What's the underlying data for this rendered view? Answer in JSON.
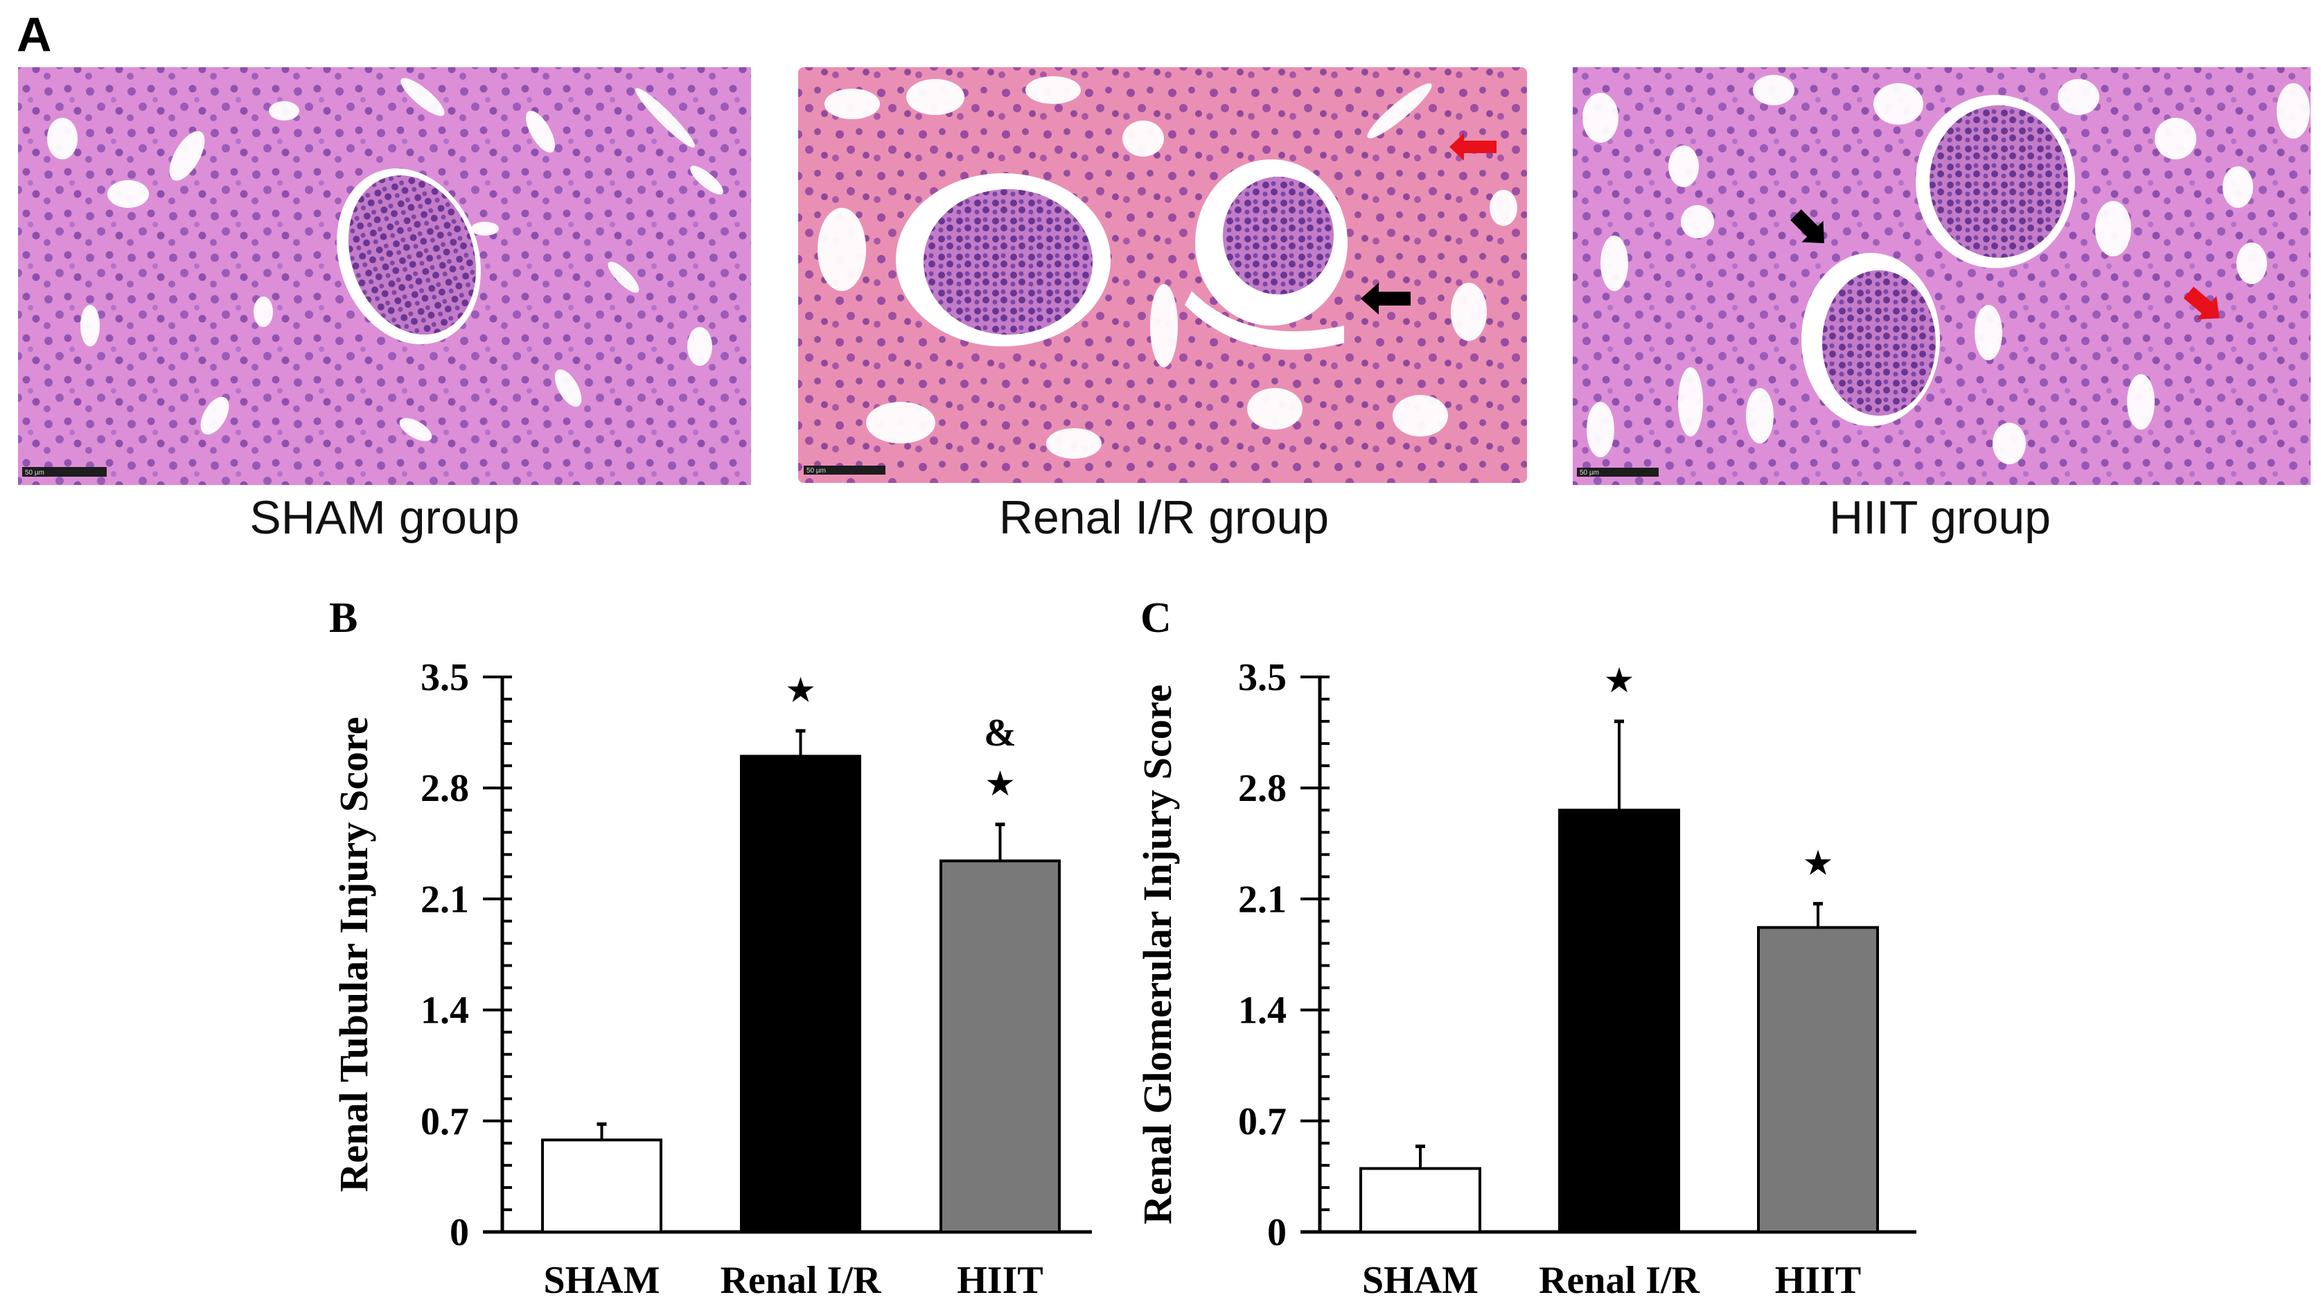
{
  "figure": {
    "panel_a": {
      "letter": "A",
      "images": [
        {
          "caption": "SHAM group",
          "scale_bar": "50 µm",
          "arrows": []
        },
        {
          "caption": "Renal I/R group",
          "scale_bar": "50 µm",
          "arrows": [
            {
              "color": "#e8101a",
              "direction": "left"
            },
            {
              "color": "#000000",
              "direction": "left"
            }
          ]
        },
        {
          "caption": "HIIT group",
          "scale_bar": "50 µm",
          "arrows": [
            {
              "color": "#000000",
              "direction": "down-right"
            },
            {
              "color": "#e8101a",
              "direction": "down-right"
            }
          ]
        }
      ],
      "tissue_colors": {
        "stroma": "#dc8fd6",
        "nucleus": "#7e44a6",
        "lumen": "#ffffff",
        "injured_stroma": "#ea8fb4"
      }
    },
    "panel_b": {
      "letter": "B"
    },
    "panel_c": {
      "letter": "C"
    }
  },
  "chart_data": [
    {
      "panel": "B",
      "type": "bar",
      "title": "",
      "xlabel": "",
      "ylabel": "Renal Tubular Injury Score",
      "categories": [
        "SHAM",
        "Renal I/R",
        "HIIT"
      ],
      "values": [
        0.58,
        3.0,
        2.34
      ],
      "error_upper": [
        0.68,
        3.16,
        2.57
      ],
      "errors": [
        0.1,
        0.16,
        0.23
      ],
      "bar_colors": [
        "#ffffff",
        "#000000",
        "#797979"
      ],
      "annotations": [
        {
          "category": "Renal I/R",
          "marks": [
            "★"
          ]
        },
        {
          "category": "HIIT",
          "marks": [
            "&",
            "★"
          ]
        }
      ],
      "yticks": [
        "0",
        "0.7",
        "1.4",
        "2.1",
        "2.8",
        "3.5"
      ],
      "ylim": [
        0,
        3.5
      ],
      "minor_tick_step": 0.14,
      "grid": false,
      "legend": null
    },
    {
      "panel": "C",
      "type": "bar",
      "title": "",
      "xlabel": "",
      "ylabel": "Renal Glomerular Injury Score",
      "categories": [
        "SHAM",
        "Renal I/R",
        "HIIT"
      ],
      "values": [
        0.4,
        2.66,
        1.92
      ],
      "error_upper": [
        0.54,
        3.22,
        2.07
      ],
      "errors": [
        0.14,
        0.56,
        0.15
      ],
      "bar_colors": [
        "#ffffff",
        "#000000",
        "#797979"
      ],
      "annotations": [
        {
          "category": "Renal I/R",
          "marks": [
            "★"
          ]
        },
        {
          "category": "HIIT",
          "marks": [
            "★"
          ]
        }
      ],
      "yticks": [
        "0",
        "0.7",
        "1.4",
        "2.1",
        "2.8",
        "3.5"
      ],
      "ylim": [
        0,
        3.5
      ],
      "minor_tick_step": 0.14,
      "grid": false,
      "legend": null
    }
  ]
}
